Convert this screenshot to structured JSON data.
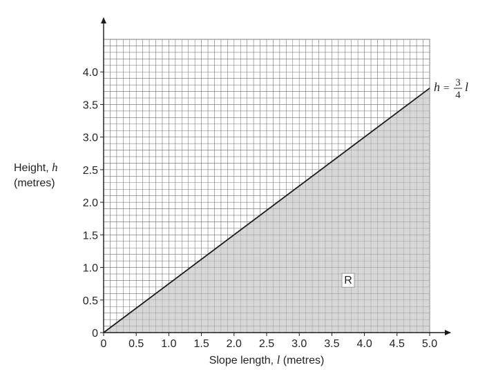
{
  "chart_data": {
    "type": "line",
    "xlabel_text": "Slope length, ",
    "xlabel_var": "l",
    "xlabel_unit": " (metres)",
    "ylabel_text": "Height, ",
    "ylabel_var": "h",
    "ylabel_unit": "(metres)",
    "xlim": [
      0,
      5
    ],
    "ylim": [
      0,
      4.5
    ],
    "x_ticks": [
      {
        "value": 0,
        "label": "0"
      },
      {
        "value": 0.5,
        "label": "0.5"
      },
      {
        "value": 1,
        "label": "1.0"
      },
      {
        "value": 1.5,
        "label": "1.5"
      },
      {
        "value": 2,
        "label": "2.0"
      },
      {
        "value": 2.5,
        "label": "2.5"
      },
      {
        "value": 3,
        "label": "3.0"
      },
      {
        "value": 3.5,
        "label": "3.5"
      },
      {
        "value": 4,
        "label": "4.0"
      },
      {
        "value": 4.5,
        "label": "4.5"
      },
      {
        "value": 5,
        "label": "5.0"
      }
    ],
    "y_ticks": [
      {
        "value": 0,
        "label": "0"
      },
      {
        "value": 0.5,
        "label": "0.5"
      },
      {
        "value": 1,
        "label": "1.0"
      },
      {
        "value": 1.5,
        "label": "1.5"
      },
      {
        "value": 2,
        "label": "2.0"
      },
      {
        "value": 2.5,
        "label": "2.5"
      },
      {
        "value": 3,
        "label": "3.0"
      },
      {
        "value": 3.5,
        "label": "3.5"
      },
      {
        "value": 4,
        "label": "4.0"
      }
    ],
    "grid": true,
    "minor_grid_step": 0.1,
    "series": [
      {
        "x": [
          0,
          5
        ],
        "y": [
          0,
          3.75
        ]
      }
    ],
    "line_label": {
      "lhs": "h",
      "equals": "=",
      "numerator": "3",
      "denominator": "4",
      "rhs": "l"
    },
    "shaded_region": {
      "label": "R",
      "color": "#d0d0d0",
      "vertices": [
        [
          0,
          0
        ],
        [
          5,
          0
        ],
        [
          5,
          3.75
        ]
      ],
      "label_at": [
        3.75,
        0.75
      ]
    },
    "colors": {
      "grid": "#7a7a7a",
      "line": "#1a1a1a",
      "axis": "#1a1a1a"
    }
  }
}
